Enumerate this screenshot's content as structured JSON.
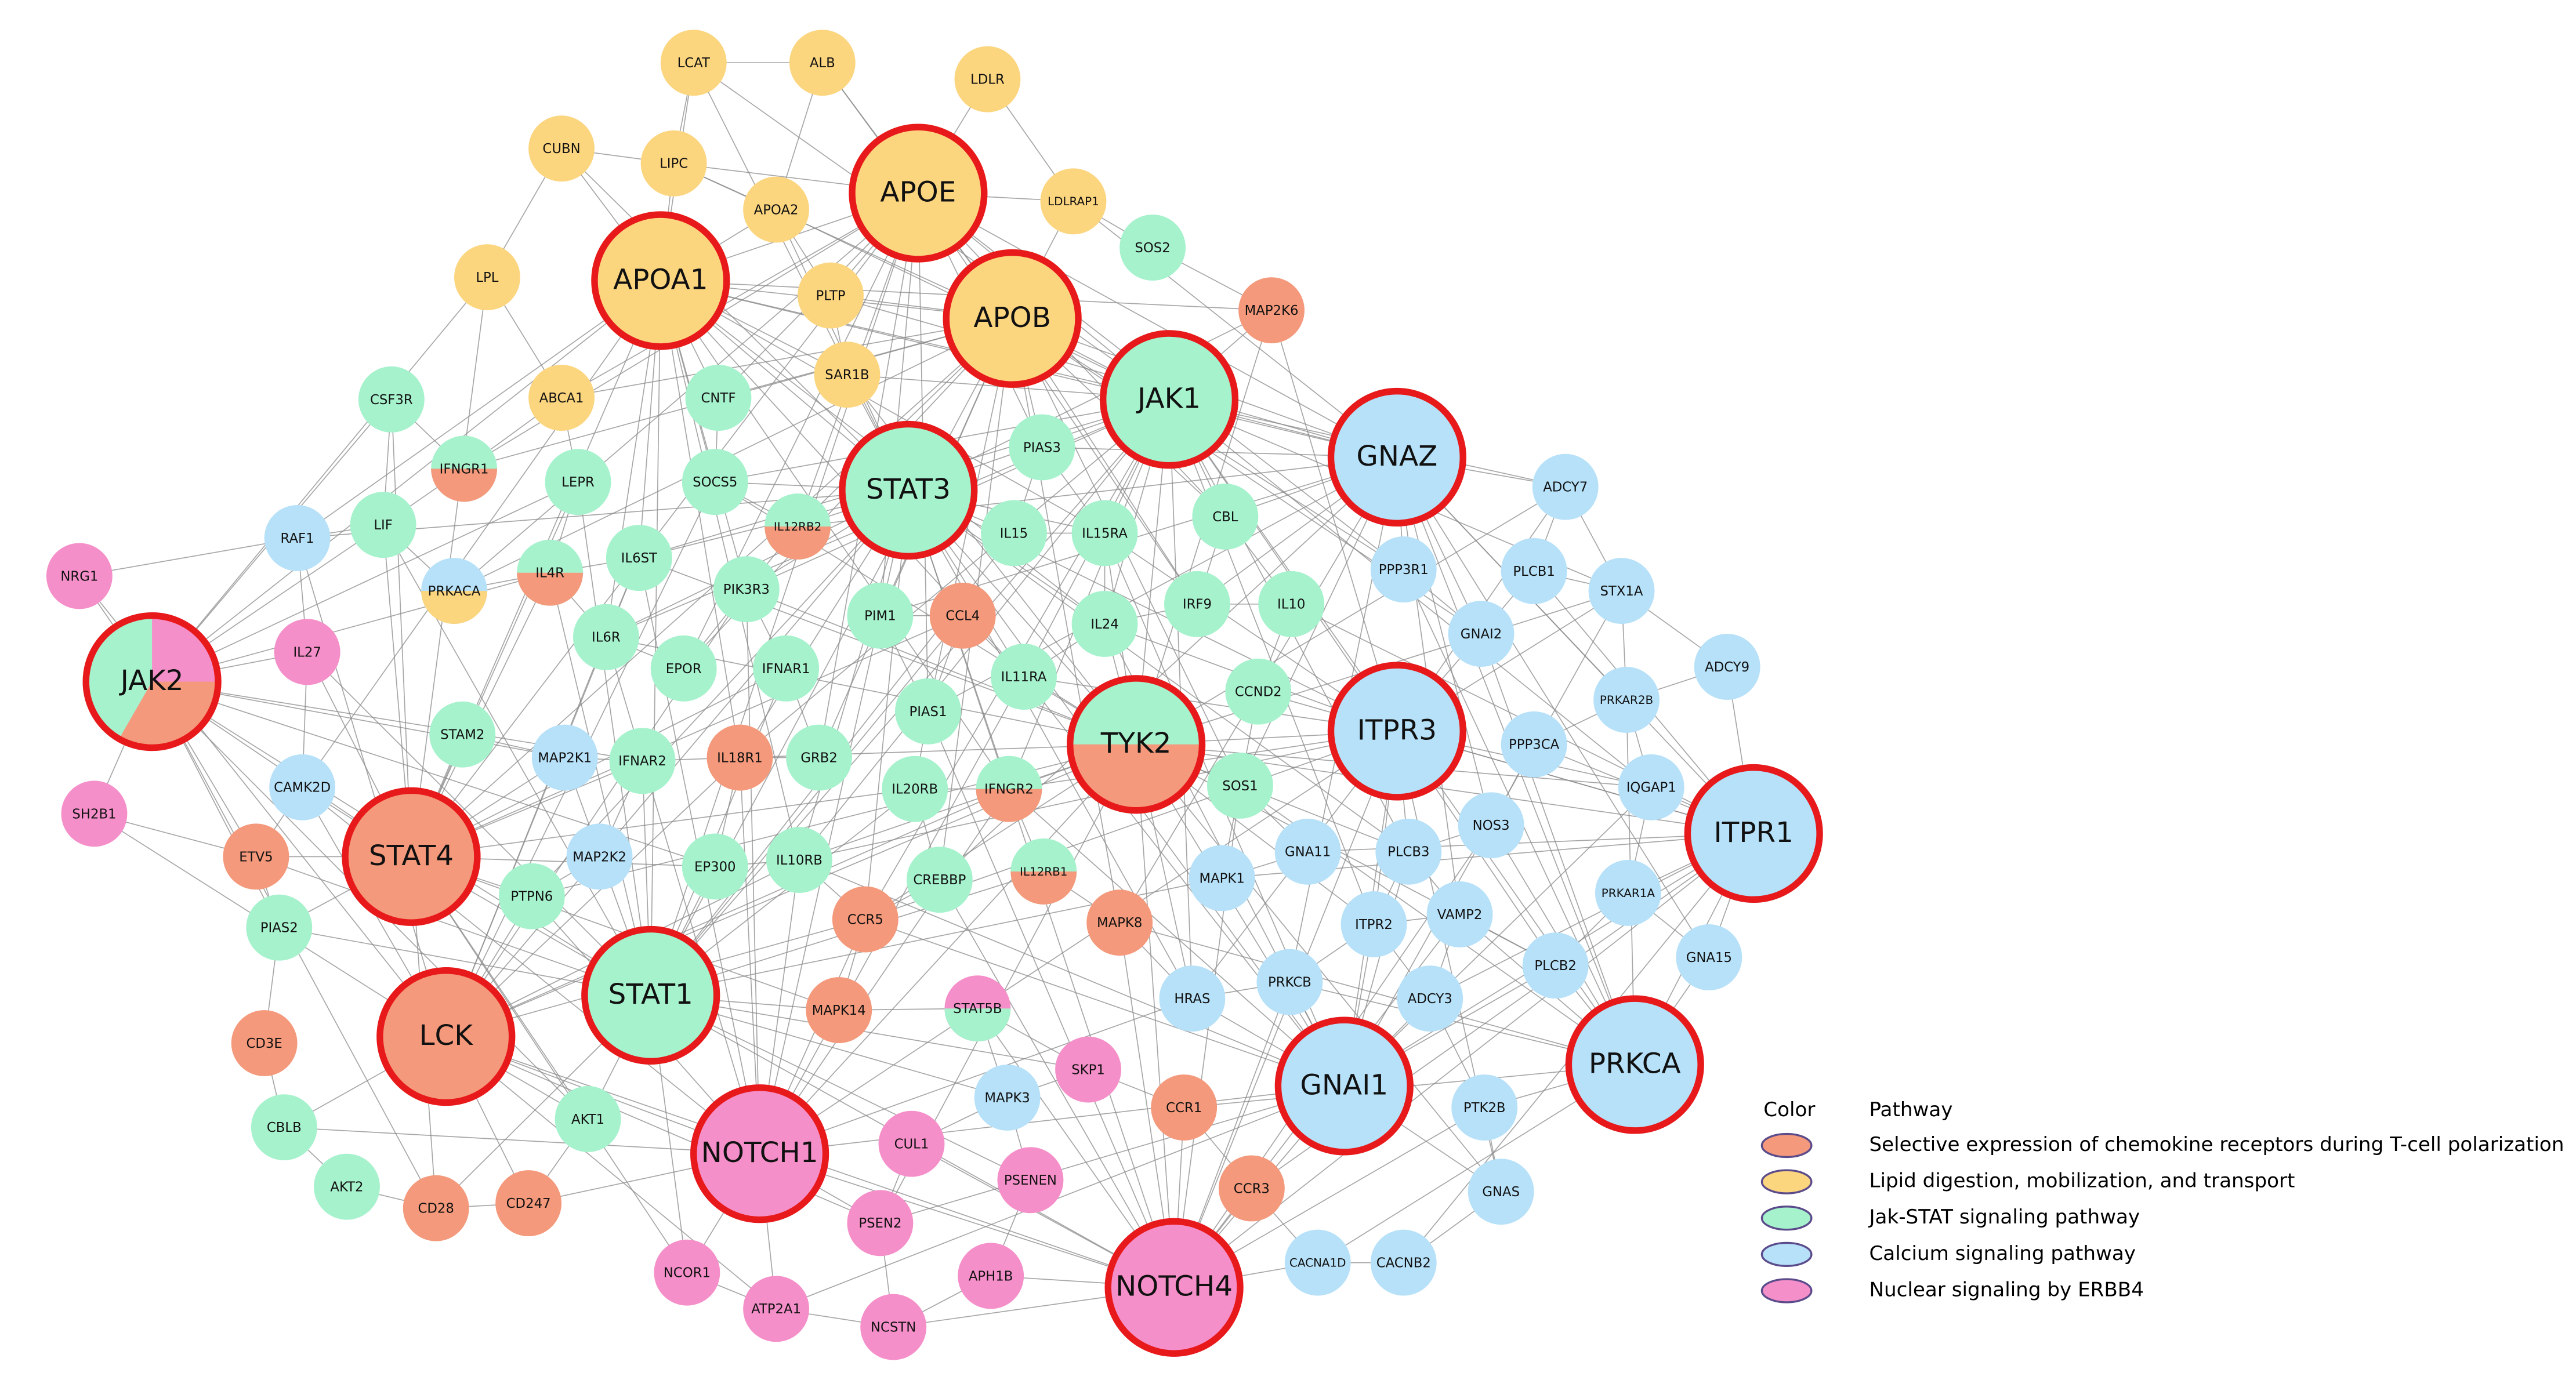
{
  "nodes": [
    "LCAT",
    "ALB",
    "LDLR",
    "CUBN",
    "LIPC",
    "APOE",
    "APOA2",
    "LDLRAP1",
    "LPL",
    "APOA1",
    "PLTP",
    "APOB",
    "SAR1B",
    "ABCA1",
    "SOS2",
    "JAK1",
    "CNTF",
    "CSF3R",
    "STAT3",
    "PIAS3",
    "LEPR",
    "SOCS5",
    "IFNGR1",
    "LIF",
    "IL6ST",
    "IL12RB2",
    "IL15",
    "IL15RA",
    "CBL",
    "IL4R",
    "PIK3R3",
    "PIM1",
    "CCL4",
    "IL24",
    "IRF9",
    "IL10",
    "IL6R",
    "EPOR",
    "IFNAR1",
    "IL11RA",
    "PIAS1",
    "CCND2",
    "TYK2",
    "STAM2",
    "IFNAR2",
    "IL18R1",
    "GRB2",
    "IL20RB",
    "IFNGR2",
    "SOS1",
    "EP300",
    "IL10RB",
    "CREBBP",
    "IL12RB1",
    "PTPN6",
    "STAT1",
    "AKT1",
    "CBLB",
    "AKT2",
    "PIAS2",
    "RAF1",
    "PRKACA",
    "MAP2K1",
    "CAMK2D",
    "MAP2K2",
    "GNAZ",
    "ADCY7",
    "PPP3R1",
    "PLCB1",
    "STX1A",
    "GNAI2",
    "ADCY9",
    "ITPR3",
    "PRKAR2B",
    "PPP3CA",
    "IQGAP1",
    "ITPR1",
    "GNA11",
    "PLCB3",
    "NOS3",
    "MAPK1",
    "ITPR2",
    "VAMP2",
    "PRKAR1A",
    "HRAS",
    "PRKCB",
    "ADCY3",
    "PLCB2",
    "GNA15",
    "PRKCA",
    "GNAI1",
    "PTK2B",
    "MAPK3",
    "GNAS",
    "CACNA1D",
    "CACNB2",
    "MAP2K6",
    "STAT4",
    "ETV5",
    "CCR5",
    "MAPK8",
    "MAPK14",
    "LCK",
    "CD3E",
    "CD28",
    "CD247",
    "CCR1",
    "CCR3",
    "NRG1",
    "JAK2",
    "IL27",
    "SH2B1",
    "STAT5B",
    "SKP1",
    "NOTCH1",
    "CUL1",
    "PSENEN",
    "PSEN2",
    "APH1B",
    "NCOR1",
    "ATP2A1",
    "NCSTN",
    "NOTCH4"
  ],
  "legend": {
    "header": [
      "Color",
      "Pathway"
    ],
    "items": [
      "Selective expression of chemokine receptors during T-cell polarization",
      "Lipid digestion, mobilization, and transport",
      "Jak-STAT signaling pathway",
      "Calcium signaling pathway",
      "Nuclear signaling by ERBB4"
    ]
  }
}
